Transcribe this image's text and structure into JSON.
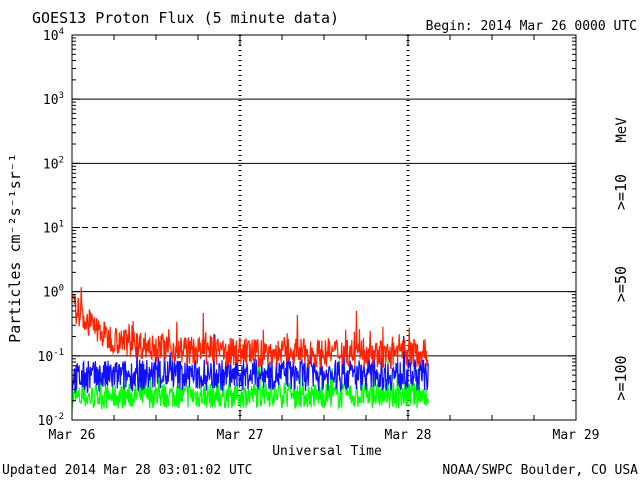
{
  "title": "GOES13 Proton Flux (5 minute data)",
  "begin": "Begin: 2014 Mar 26 0000 UTC",
  "updated": "Updated 2014 Mar 28 03:01:02 UTC",
  "credit": "NOAA/SWPC Boulder, CO USA",
  "colors": {
    "ge10": "#ff2200",
    "ge50": "#1010ff",
    "ge100": "#00ff00",
    "axis": "#000000"
  },
  "chart_data": {
    "type": "line",
    "title": "GOES13 Proton Flux (5 minute data)",
    "xlabel": "Universal Time",
    "ylabel": "Particles cm⁻²s⁻¹sr⁻¹",
    "yscale": "log",
    "ylim": [
      0.01,
      10000
    ],
    "xlim_days": [
      0,
      3
    ],
    "y_ticks": [
      {
        "value": 10000,
        "base": "10",
        "exp": "4"
      },
      {
        "value": 1000,
        "base": "10",
        "exp": "3"
      },
      {
        "value": 100,
        "base": "10",
        "exp": "2"
      },
      {
        "value": 10,
        "base": "10",
        "exp": "1"
      },
      {
        "value": 1,
        "base": "10",
        "exp": "0"
      },
      {
        "value": 0.1,
        "base": "10",
        "exp": "-1"
      },
      {
        "value": 0.01,
        "base": "10",
        "exp": "-2"
      }
    ],
    "x_ticks": [
      {
        "day": 0,
        "label": "Mar 26"
      },
      {
        "day": 1,
        "label": "Mar 27"
      },
      {
        "day": 2,
        "label": "Mar 28"
      },
      {
        "day": 3,
        "label": "Mar 29"
      }
    ],
    "threshold_lines": [
      {
        "value": 10,
        "style": "dashed"
      },
      {
        "value": 1000,
        "style": "solid"
      },
      {
        "value": 100,
        "style": "solid"
      },
      {
        "value": 1,
        "style": "solid"
      },
      {
        "value": 0.1,
        "style": "solid"
      }
    ],
    "unit_label": "MeV",
    "series": [
      {
        "name": ">=10",
        "color": "#ff2200",
        "x_days": [
          0,
          0.05,
          0.1,
          0.15,
          0.2,
          0.3,
          0.4,
          0.5,
          0.6,
          0.7,
          0.8,
          0.9,
          1.0,
          1.1,
          1.2,
          1.3,
          1.4,
          1.5,
          1.6,
          1.7,
          1.8,
          1.9,
          2.0,
          2.12
        ],
        "values": [
          0.6,
          0.45,
          0.32,
          0.26,
          0.2,
          0.17,
          0.15,
          0.14,
          0.13,
          0.12,
          0.12,
          0.11,
          0.12,
          0.11,
          0.11,
          0.12,
          0.11,
          0.11,
          0.12,
          0.11,
          0.11,
          0.1,
          0.11,
          0.11
        ]
      },
      {
        "name": ">=50",
        "color": "#1010ff",
        "x_days": [
          0,
          0.2,
          0.4,
          0.6,
          0.8,
          1.0,
          1.2,
          1.4,
          1.6,
          1.8,
          2.0,
          2.12
        ],
        "values": [
          0.045,
          0.048,
          0.05,
          0.052,
          0.05,
          0.05,
          0.052,
          0.05,
          0.05,
          0.052,
          0.05,
          0.05
        ]
      },
      {
        "name": ">=100",
        "color": "#00ff00",
        "x_days": [
          0,
          0.2,
          0.4,
          0.6,
          0.8,
          1.0,
          1.2,
          1.4,
          1.6,
          1.8,
          2.0,
          2.12
        ],
        "values": [
          0.022,
          0.023,
          0.024,
          0.024,
          0.024,
          0.024,
          0.025,
          0.024,
          0.024,
          0.024,
          0.024,
          0.024
        ]
      }
    ]
  }
}
